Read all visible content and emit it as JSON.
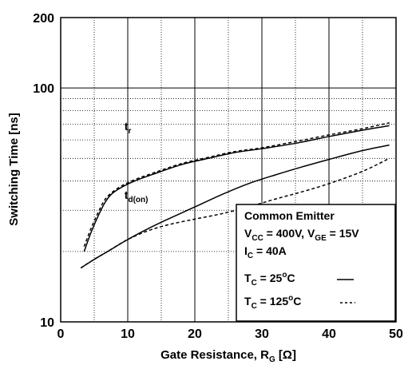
{
  "chart_data": {
    "type": "line",
    "title": "",
    "xlabel": "Gate Resistance, R",
    "xlabel_sub": "G",
    "xlabel_unit": " [Ω]",
    "ylabel": "Switching Time [ns]",
    "xlim": [
      0,
      50
    ],
    "ylim": [
      10,
      200
    ],
    "y_scale": "log",
    "grid": true,
    "x_ticks": [
      0,
      10,
      20,
      30,
      40,
      50
    ],
    "x_tick_labels": [
      "0",
      "10",
      "20",
      "30",
      "40",
      "50"
    ],
    "y_tick_values": [
      10,
      100,
      200
    ],
    "y_tick_labels": [
      "10",
      "100",
      "200"
    ],
    "series": [
      {
        "name": "t_r",
        "label_main": "t",
        "label_sub": "r",
        "label_at": [
          9.5,
          66
        ],
        "curves": [
          {
            "condition": "TC = 25°C",
            "style": "solid",
            "x": [
              3.5,
              4.5,
              5.5,
              6.5,
              7.5,
              9,
              11,
              14,
              18,
              22,
              26,
              30,
              35,
              40,
              45,
              49
            ],
            "y": [
              20,
              24,
              28,
              32,
              35,
              37.5,
              40,
              43,
              47,
              50,
              53,
              55,
              58,
              62,
              66,
              69
            ]
          },
          {
            "condition": "TC = 125°C",
            "style": "dashed",
            "x": [
              3.5,
              4.5,
              5.5,
              6.5,
              7.5,
              9,
              11,
              14,
              18,
              22,
              26,
              30,
              35,
              40,
              45,
              49
            ],
            "y": [
              21,
              25,
              29,
              33,
              35.5,
              38,
              40.5,
              43.5,
              47.5,
              50.5,
              53.5,
              55.5,
              59,
              63,
              67,
              71
            ]
          }
        ]
      },
      {
        "name": "t_d(on)",
        "label_main": "t",
        "label_sub": "d(on)",
        "label_at": [
          9.5,
          33.5
        ],
        "curves": [
          {
            "condition": "TC = 25°C",
            "style": "solid",
            "x": [
              3,
              5,
              7,
              10,
              13,
              16,
              20,
              24,
              28,
              32,
              36,
              40,
              45,
              49
            ],
            "y": [
              17,
              18.5,
              20,
              22.5,
              25,
              27.5,
              31,
              35,
              39,
              42.5,
              46,
              49.5,
              54,
              57
            ]
          },
          {
            "condition": "TC = 125°C",
            "style": "dashed",
            "x": [
              3,
              5,
              7,
              10,
              13,
              16,
              20,
              24,
              28,
              32,
              36,
              40,
              45,
              49
            ],
            "y": [
              17,
              18.5,
              20,
              22.5,
              24.5,
              26,
              27.5,
              29,
              31,
              33.5,
              36,
              39,
              44,
              50
            ]
          }
        ]
      }
    ],
    "legend": {
      "placement": "bottom-right",
      "title": "Common Emitter",
      "line2": {
        "vcc_main": "V",
        "vcc_sub": "CC",
        "vcc_val": " = 400V, ",
        "vge_main": "V",
        "vge_sub": "GE",
        "vge_val": " = 15V"
      },
      "line3": {
        "main": "I",
        "sub": "C",
        "val": " = 40A"
      },
      "entries": [
        {
          "main": "T",
          "sub": "C",
          "val": " = 25",
          "sup": "o",
          "unit": "C",
          "style": "solid"
        },
        {
          "main": "T",
          "sub": "C",
          "val": " = 125",
          "sup": "o",
          "unit": "C",
          "style": "dashed"
        }
      ]
    },
    "colors": {
      "line": "#000000",
      "grid": "#000000",
      "background": "#ffffff"
    }
  }
}
